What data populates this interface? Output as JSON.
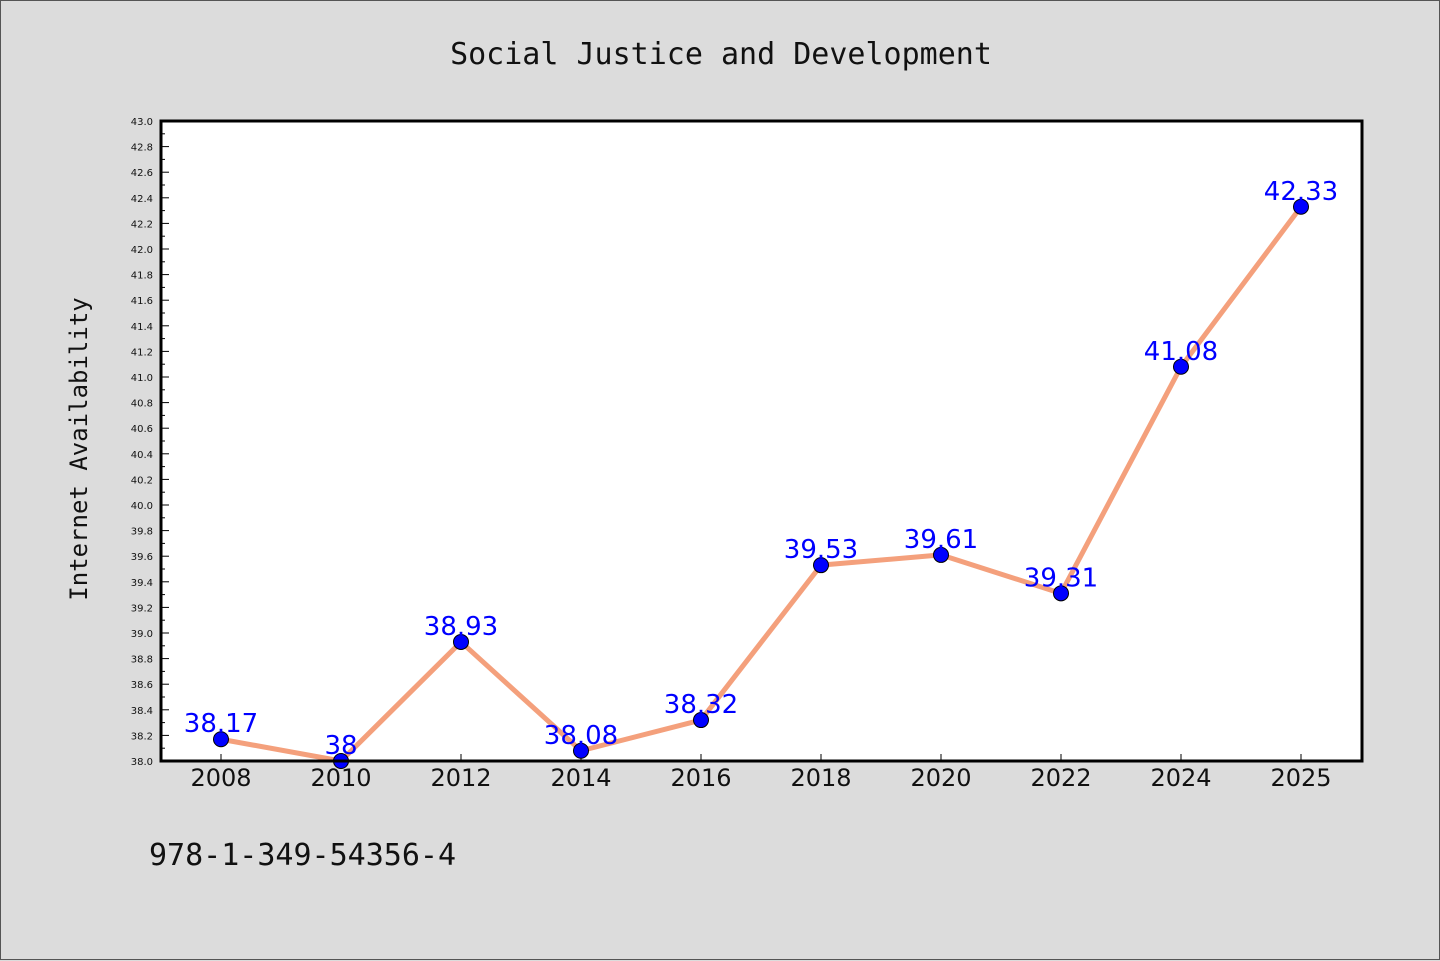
{
  "chart_data": {
    "type": "line",
    "title": "Social Justice and Development",
    "xlabel": "",
    "ylabel": "Internet Availability",
    "categories": [
      "2008",
      "2010",
      "2012",
      "2014",
      "2016",
      "2018",
      "2020",
      "2022",
      "2024",
      "2025"
    ],
    "series": [
      {
        "values": [
          38.17,
          38,
          38.93,
          38.08,
          38.32,
          39.53,
          39.61,
          39.31,
          41.08,
          42.33
        ],
        "labels": [
          "38.17",
          "38",
          "38.93",
          "38.08",
          "38.32",
          "39.53",
          "39.61",
          "39.31",
          "41.08",
          "42.33"
        ],
        "line_color": "#f4a07c",
        "marker_color": "#0000ff"
      }
    ],
    "ylim": [
      38.0,
      43.0
    ],
    "yticks": [
      "38.0",
      "38.2",
      "38.4",
      "38.6",
      "38.8",
      "39.0",
      "39.2",
      "39.4",
      "39.6",
      "39.8",
      "40.0",
      "40.2",
      "40.4",
      "40.6",
      "40.8",
      "41.0",
      "41.2",
      "41.4",
      "41.6",
      "41.8",
      "42.0",
      "42.2",
      "42.4",
      "42.6",
      "42.8",
      "43.0"
    ],
    "grid": false,
    "legend": false
  },
  "footer": {
    "text": "978-1-349-54356-4"
  },
  "colors": {
    "background": "#dcdcdc",
    "plot_background": "#ffffff"
  }
}
